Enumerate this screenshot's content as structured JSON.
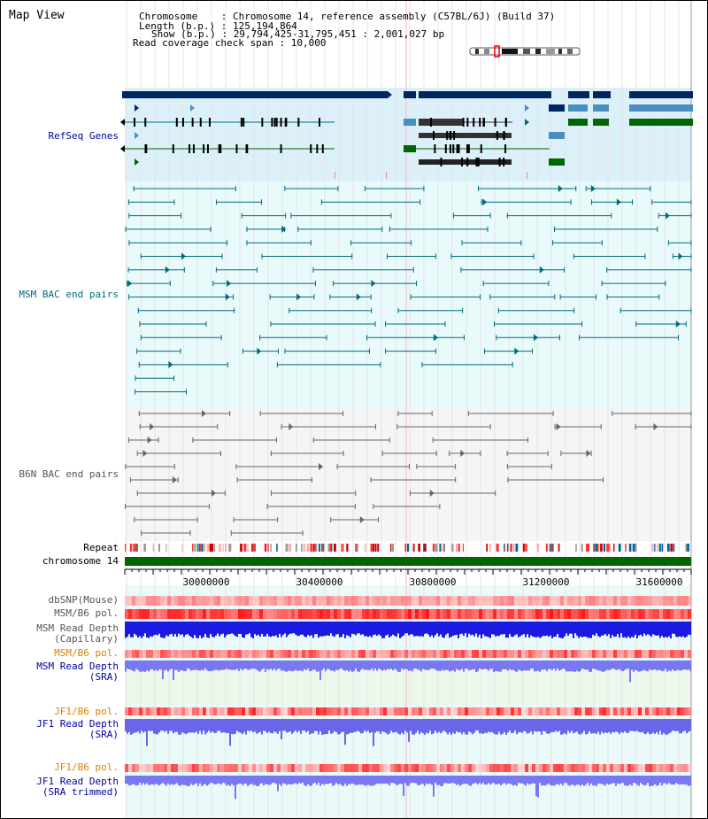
{
  "title": "Map View",
  "info": {
    "chromosome_label": "Chromosome    : Chromosome 14, reference assembly (C57BL/6J) (Build 37)",
    "length_label": "Length (b.p.) : 125,194,864",
    "show_label": "Show (b.p.) : 29,794,425-31,795,451 : 2,001,027 bp",
    "coverage_label": "Read coverage check span : 10,000"
  },
  "tracks": {
    "refseq": "RefSeq Genes",
    "msm_bac": "MSM BAC end pairs",
    "b6n_bac": "B6N BAC end pairs",
    "repeat": "Repeat",
    "chromosome": "chromosome 14",
    "dbsnp": "dbSNP(Mouse)",
    "msm_b6_pol_1": "MSM/B6 pol.",
    "msm_read_depth_cap_1": "MSM Read Depth",
    "msm_read_depth_cap_2": "(Capillary)",
    "msm_b6_pol_2": "MSM/B6 pol.",
    "msm_read_depth_sra_1": "MSM Read Depth",
    "msm_read_depth_sra_2": "(SRA)",
    "jf1_b6_pol_1": "JF1/B6 pol.",
    "jf1_read_depth_sra_1": "JF1 Read Depth",
    "jf1_read_depth_sra_2": "(SRA)",
    "jf1_b6_pol_2": "JF1/B6 pol.",
    "jf1_read_depth_trim_1": "JF1 Read Depth",
    "jf1_read_depth_trim_2": "(SRA trimmed)"
  },
  "axis": {
    "ticks": [
      "30000000",
      "30400000",
      "30800000",
      "31200000",
      "31600000"
    ]
  },
  "colors": {
    "refseq_dark": "#00275f",
    "refseq_mid": "#4a8fc0",
    "refseq_green": "#006600",
    "msm_bac": "#006a80",
    "b6n_bac": "#666666",
    "chromosome": "#006600",
    "label_blue": "#0000a0",
    "label_teal": "#006a80",
    "label_orange": "#e08000"
  }
}
